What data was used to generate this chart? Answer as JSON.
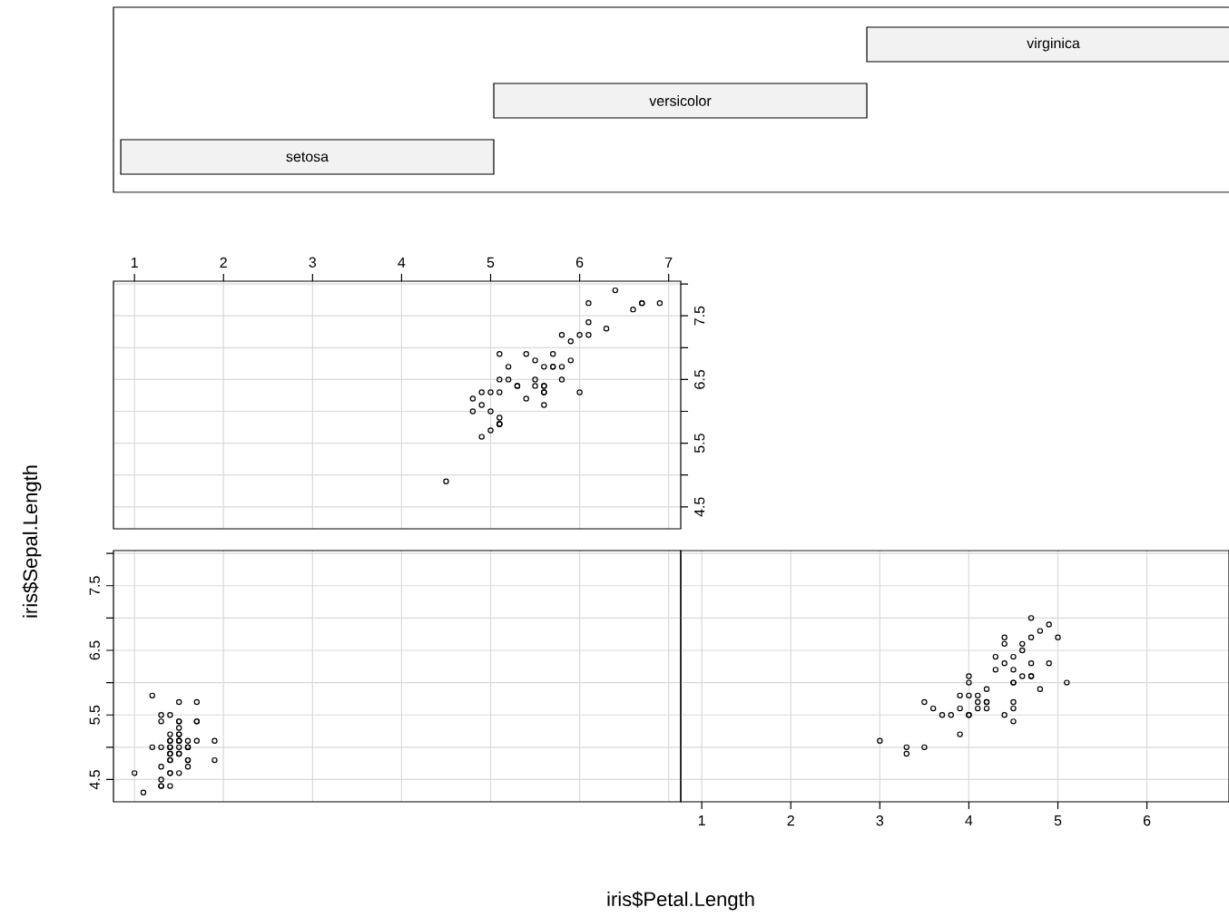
{
  "chart_data": [
    {
      "type": "other",
      "annotations": [
        "setosa",
        "versicolor",
        "virginica"
      ]
    },
    {
      "type": "scatter",
      "marker": "circle",
      "grid": true,
      "xlim": [
        0.764,
        7.136
      ],
      "ylim": [
        4.156,
        8.044
      ],
      "xticks": [
        1,
        2,
        3,
        4,
        5,
        6,
        7
      ],
      "yticks": [
        4.5,
        {
          "value": 5,
          "label": null
        },
        5.5,
        {
          "value": 6,
          "label": null
        },
        6.5,
        {
          "value": 7,
          "label": null
        },
        7.5,
        {
          "value": 8,
          "label": null
        }
      ],
      "series": [
        {
          "color": "#000000",
          "x": [
            6.0,
            5.1,
            5.9,
            5.6,
            5.8,
            6.6,
            4.5,
            6.3,
            5.8,
            6.1,
            5.1,
            5.3,
            5.5,
            5.0,
            5.1,
            5.3,
            5.5,
            6.7,
            6.9,
            5.0,
            5.7,
            4.9,
            6.7,
            4.9,
            5.7,
            6.0,
            4.8,
            4.9,
            5.6,
            5.8,
            6.1,
            6.4,
            5.6,
            5.1,
            5.6,
            6.1,
            5.6,
            5.5,
            4.8,
            5.4,
            5.6,
            5.1,
            5.1,
            5.9,
            5.7,
            5.2,
            5.0,
            5.2,
            5.4,
            5.1
          ],
          "values": [
            6.3,
            5.8,
            7.1,
            6.3,
            6.5,
            7.6,
            4.9,
            7.3,
            6.7,
            7.2,
            6.5,
            6.4,
            6.8,
            5.7,
            5.8,
            6.4,
            6.5,
            7.7,
            7.7,
            6.0,
            6.9,
            5.6,
            7.7,
            6.3,
            6.7,
            7.2,
            6.2,
            6.1,
            6.4,
            7.2,
            7.4,
            7.9,
            6.4,
            6.3,
            6.1,
            7.7,
            6.3,
            6.4,
            6.0,
            6.9,
            6.7,
            6.9,
            5.8,
            6.8,
            6.7,
            6.7,
            6.3,
            6.5,
            6.2,
            5.9
          ]
        }
      ]
    },
    {
      "type": "scatter",
      "marker": "circle",
      "grid": true,
      "tick_labels": "y",
      "ylabel": "iris$Sepal.Length",
      "xlim": [
        0.764,
        7.136
      ],
      "ylim": [
        4.156,
        8.044
      ],
      "xticks": [
        1,
        2,
        3,
        4,
        5,
        6,
        7
      ],
      "yticks": [
        4.5,
        {
          "value": 5,
          "label": null
        },
        5.5,
        {
          "value": 6,
          "label": null
        },
        6.5,
        {
          "value": 7,
          "label": null
        },
        7.5,
        {
          "value": 8,
          "label": null
        }
      ],
      "series": [
        {
          "color": "#000000",
          "x": [
            1.4,
            1.4,
            1.3,
            1.5,
            1.4,
            1.7,
            1.4,
            1.5,
            1.4,
            1.5,
            1.5,
            1.6,
            1.4,
            1.1,
            1.2,
            1.5,
            1.3,
            1.4,
            1.7,
            1.5,
            1.7,
            1.5,
            1.0,
            1.7,
            1.9,
            1.6,
            1.6,
            1.5,
            1.4,
            1.6,
            1.6,
            1.5,
            1.5,
            1.4,
            1.5,
            1.2,
            1.3,
            1.4,
            1.3,
            1.5,
            1.3,
            1.3,
            1.3,
            1.6,
            1.9,
            1.4,
            1.6,
            1.4,
            1.5,
            1.4
          ],
          "values": [
            5.1,
            4.9,
            4.7,
            4.6,
            5.0,
            5.4,
            4.6,
            5.0,
            4.4,
            4.9,
            5.4,
            4.8,
            4.8,
            4.3,
            5.8,
            5.7,
            5.4,
            5.1,
            5.7,
            5.1,
            5.4,
            5.1,
            4.6,
            5.1,
            4.8,
            5.0,
            5.0,
            5.2,
            5.2,
            4.7,
            4.8,
            5.4,
            5.2,
            5.5,
            4.9,
            5.0,
            5.5,
            4.9,
            4.4,
            5.1,
            5.0,
            4.5,
            4.4,
            5.0,
            5.1,
            4.8,
            5.1,
            4.6,
            5.3,
            5.0
          ]
        }
      ]
    },
    {
      "type": "scatter",
      "marker": "circle",
      "grid": true,
      "tick_labels": "x",
      "xlabel": "iris$Petal.Length",
      "xlim": [
        0.764,
        6.922
      ],
      "ylim": [
        4.156,
        8.044
      ],
      "xticks": [
        1,
        2,
        3,
        4,
        5,
        6
      ],
      "yticks": [
        4.5,
        {
          "value": 5,
          "label": null
        },
        5.5,
        {
          "value": 6,
          "label": null
        },
        6.5,
        {
          "value": 7,
          "label": null
        },
        7.5,
        {
          "value": 8,
          "label": null
        }
      ],
      "series": [
        {
          "color": "#000000",
          "x": [
            4.7,
            4.5,
            4.9,
            4.0,
            4.6,
            4.5,
            4.7,
            3.3,
            4.6,
            3.9,
            3.5,
            4.2,
            4.0,
            4.7,
            3.6,
            4.4,
            4.5,
            4.1,
            4.5,
            3.9,
            4.8,
            4.0,
            4.9,
            4.7,
            4.3,
            4.4,
            4.8,
            5.0,
            4.5,
            3.5,
            3.8,
            3.7,
            3.9,
            5.1,
            4.5,
            4.5,
            4.7,
            4.4,
            4.1,
            4.0,
            4.4,
            4.6,
            4.0,
            3.3,
            4.2,
            4.2,
            4.2,
            4.3,
            3.0,
            4.1
          ],
          "values": [
            7.0,
            6.4,
            6.9,
            5.5,
            6.5,
            5.7,
            6.3,
            4.9,
            6.6,
            5.2,
            5.0,
            5.9,
            6.0,
            6.1,
            5.6,
            6.7,
            5.6,
            5.8,
            6.2,
            5.6,
            5.9,
            6.1,
            6.3,
            6.1,
            6.4,
            6.6,
            6.8,
            6.7,
            6.0,
            5.7,
            5.5,
            5.5,
            5.8,
            6.0,
            5.4,
            6.0,
            6.7,
            6.3,
            5.6,
            5.5,
            5.5,
            6.1,
            5.8,
            5.0,
            5.6,
            5.7,
            5.7,
            6.2,
            5.1,
            5.7
          ]
        }
      ]
    }
  ]
}
